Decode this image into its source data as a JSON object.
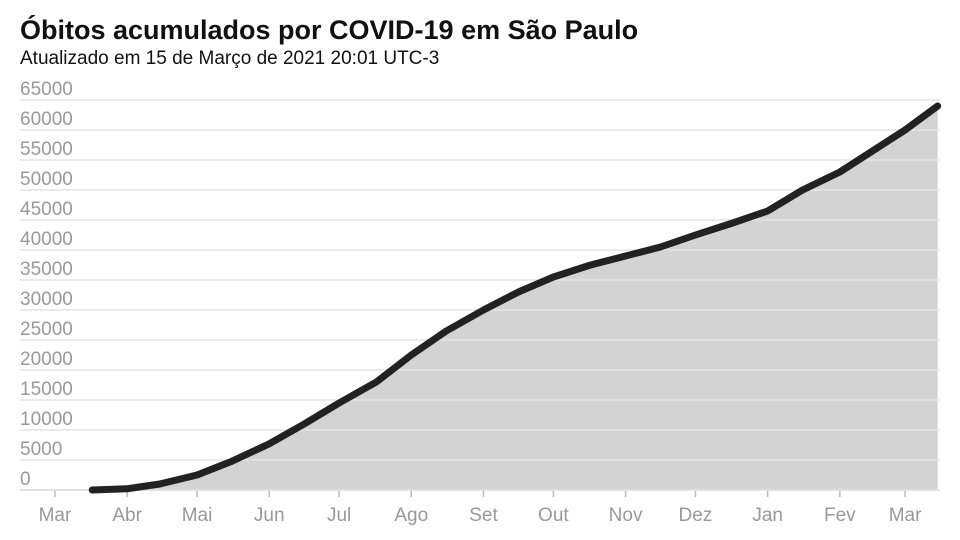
{
  "chart_data": {
    "type": "area",
    "title": "Óbitos acumulados por COVID-19 em São Paulo",
    "subtitle": "Atualizado em 15 de Março de 2021 20:01 UTC-3",
    "color": "#222222",
    "fill": "#d3d3d3",
    "grid": true,
    "x": [
      16,
      31,
      45,
      61,
      76,
      92,
      107,
      122,
      138,
      153,
      168,
      184,
      199,
      214,
      230,
      245,
      260,
      275,
      291,
      306,
      321,
      337,
      351,
      365,
      379
    ],
    "values": [
      0,
      200,
      1000,
      2500,
      4800,
      7700,
      11000,
      14500,
      18000,
      22500,
      26500,
      30000,
      33000,
      35500,
      37500,
      39000,
      40500,
      42500,
      44500,
      46500,
      50000,
      53000,
      56500,
      60000,
      64000
    ],
    "xlim": [
      -15,
      380
    ],
    "xticks": [
      {
        "value": 0,
        "label": "Mar"
      },
      {
        "value": 31,
        "label": "Abr"
      },
      {
        "value": 61,
        "label": "Mai"
      },
      {
        "value": 92,
        "label": "Jun"
      },
      {
        "value": 122,
        "label": "Jul"
      },
      {
        "value": 153,
        "label": "Ago"
      },
      {
        "value": 184,
        "label": "Set"
      },
      {
        "value": 214,
        "label": "Out"
      },
      {
        "value": 245,
        "label": "Nov"
      },
      {
        "value": 275,
        "label": "Dez"
      },
      {
        "value": 306,
        "label": "Jan"
      },
      {
        "value": 337,
        "label": "Fev"
      },
      {
        "value": 365,
        "label": "Mar"
      }
    ],
    "ylim": [
      0,
      65000
    ],
    "yticks": [
      0,
      5000,
      10000,
      15000,
      20000,
      25000,
      30000,
      35000,
      40000,
      45000,
      50000,
      55000,
      60000,
      65000
    ]
  }
}
